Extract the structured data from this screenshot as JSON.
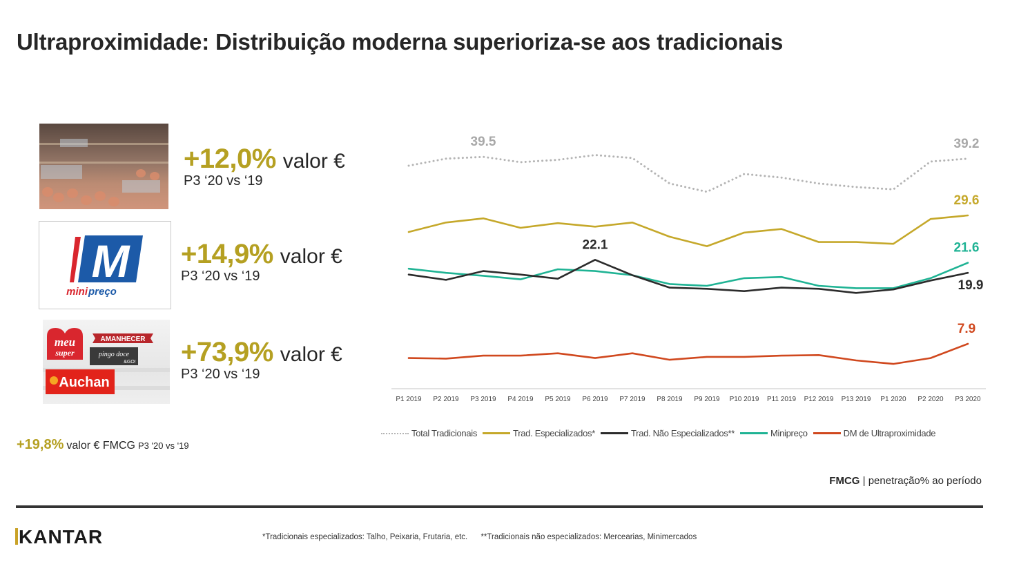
{
  "title": "Ultraproximidade: Distribuição moderna superioriza-se aos tradicionais",
  "stats": [
    {
      "pct": "+12,0%",
      "unit": "valor €",
      "period": "P3 ‘20 vs ‘19",
      "image": "traditional-store-photo"
    },
    {
      "pct": "+14,9%",
      "unit": "valor €",
      "period": "P3 ‘20 vs ‘19",
      "image": "minipreco-logo"
    },
    {
      "pct": "+73,9%",
      "unit": "valor €",
      "period": "P3 ‘20 vs ‘19",
      "image": "proximity-brands-logos"
    }
  ],
  "logos": {
    "minipreco_mark": "M",
    "minipreco_mini": "mini",
    "minipreco_preco": "preço",
    "meu_super_1": "meu",
    "meu_super_2": "super",
    "amanhecer": "AMANHECER",
    "pingo_doce": "pingo doce",
    "pingo_doce_go": "&GO!",
    "auchan": "Auchan"
  },
  "fmcg": {
    "pct": "+19,8%",
    "label": "valor € FMCG",
    "period": "P3 '20 vs '19"
  },
  "metric_note": {
    "bold": "FMCG",
    "rest": " | penetração% ao período"
  },
  "brand": "KANTAR",
  "footnotes": [
    "*Tradicionais especializados: Talho, Peixaria, Frutaria, etc.",
    "**Tradicionais não especializados: Mercearias, Minimercados"
  ],
  "colors": {
    "accent_gold": "#b5a022",
    "total": "#b4b4b4",
    "especializados": "#c5a82a",
    "nao_especializados": "#2b2b2b",
    "minipreco": "#1fb394",
    "dm": "#d0481e"
  },
  "chart_data": {
    "type": "line",
    "title": "",
    "xlabel": "",
    "ylabel": "penetração% ao período",
    "ylim": [
      0,
      45
    ],
    "grid": false,
    "legend_position": "bottom",
    "categories": [
      "P1 2019",
      "P2 2019",
      "P3 2019",
      "P4 2019",
      "P5 2019",
      "P6 2019",
      "P7 2019",
      "P8 2019",
      "P9 2019",
      "P10 2019",
      "P11 2019",
      "P12 2019",
      "P13 2019",
      "P1 2020",
      "P2 2020",
      "P3 2020"
    ],
    "series": [
      {
        "name": "Total Tradicionais",
        "key": "total",
        "style": "dotted",
        "values": [
          38.0,
          39.2,
          39.5,
          38.6,
          39.0,
          39.8,
          39.3,
          35.0,
          33.6,
          36.6,
          36.0,
          35.0,
          34.4,
          34.0,
          38.7,
          39.2
        ],
        "labels": [
          {
            "index": 2,
            "text": "39.5"
          },
          {
            "index": 15,
            "text": "39.2"
          }
        ]
      },
      {
        "name": "Trad. Especializados*",
        "key": "especializados",
        "style": "solid",
        "values": [
          26.8,
          28.4,
          29.1,
          27.5,
          28.3,
          27.7,
          28.4,
          26.0,
          24.4,
          26.7,
          27.3,
          25.1,
          25.1,
          24.8,
          29.0,
          29.6
        ],
        "labels": [
          {
            "index": 15,
            "text": "29.6"
          }
        ]
      },
      {
        "name": "Trad. Não Especializados**",
        "key": "nao_especializados",
        "style": "solid",
        "values": [
          19.6,
          18.7,
          20.2,
          19.6,
          18.9,
          22.1,
          19.5,
          17.4,
          17.2,
          16.8,
          17.4,
          17.2,
          16.5,
          17.1,
          18.6,
          19.9
        ],
        "labels": [
          {
            "index": 5,
            "text": "22.1"
          },
          {
            "index": 15,
            "text": "19.9"
          }
        ]
      },
      {
        "name": "Minipreço",
        "key": "minipreco",
        "style": "solid",
        "values": [
          20.6,
          19.9,
          19.4,
          18.8,
          20.5,
          20.2,
          19.5,
          18.0,
          17.7,
          19.0,
          19.2,
          17.7,
          17.3,
          17.3,
          19.0,
          21.6
        ],
        "labels": [
          {
            "index": 15,
            "text": "21.6"
          }
        ]
      },
      {
        "name": "DM de Ultraproximidade",
        "key": "dm",
        "style": "solid",
        "values": [
          5.5,
          5.4,
          5.9,
          5.9,
          6.3,
          5.5,
          6.3,
          5.2,
          5.7,
          5.7,
          5.9,
          6.0,
          5.1,
          4.5,
          5.5,
          7.9
        ],
        "labels": [
          {
            "index": 15,
            "text": "7.9"
          }
        ]
      }
    ]
  }
}
